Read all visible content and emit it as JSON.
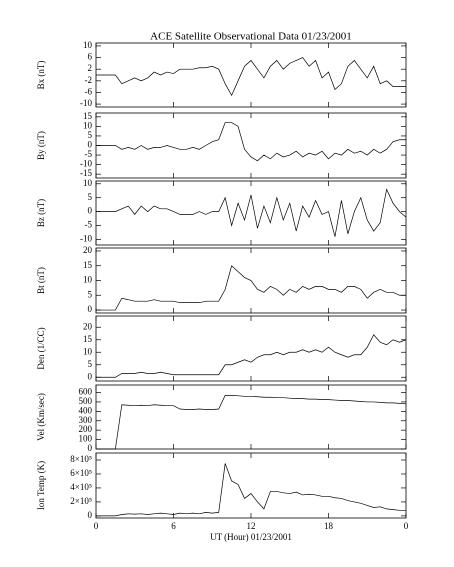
{
  "chart_data": [
    {
      "type": "line",
      "title": "ACE Satellite Observational Data   01/23/2001",
      "ylabel": "Bx (nT)",
      "x": [
        0,
        0.5,
        1,
        1.5,
        2,
        2.5,
        3,
        3.5,
        4,
        4.5,
        5,
        5.5,
        6,
        6.5,
        7,
        7.5,
        8,
        8.5,
        9,
        9.5,
        10,
        10.5,
        11,
        11.5,
        12,
        12.5,
        13,
        13.5,
        14,
        14.5,
        15,
        15.5,
        16,
        16.5,
        17,
        17.5,
        18,
        18.5,
        19,
        19.5,
        20,
        20.5,
        21,
        21.5,
        22,
        22.5,
        23,
        23.5,
        24
      ],
      "values": [
        0,
        0,
        0,
        0,
        -3,
        -2,
        -1,
        -2,
        -1,
        1,
        0,
        1,
        0.5,
        2,
        2,
        2,
        2.5,
        2.5,
        3,
        2,
        -3,
        -7,
        -2,
        3,
        5,
        2,
        -1,
        3,
        5,
        2,
        4,
        5,
        6,
        3,
        5,
        -1,
        1,
        -5,
        -3,
        3,
        5,
        2,
        -1,
        3,
        -3,
        -2,
        -4,
        -4,
        -4
      ],
      "xlim": [
        0,
        24
      ],
      "xticks": [
        0,
        6,
        12,
        18,
        {
          "value": 24,
          "label": "0"
        }
      ],
      "ylim": [
        -11,
        11
      ],
      "yticks": [
        -10,
        -6,
        -2,
        2,
        6,
        10
      ]
    },
    {
      "type": "line",
      "ylabel": "By (nT)",
      "x": [
        0,
        0.5,
        1,
        1.5,
        2,
        2.5,
        3,
        3.5,
        4,
        4.5,
        5,
        5.5,
        6,
        6.5,
        7,
        7.5,
        8,
        8.5,
        9,
        9.5,
        10,
        10.5,
        11,
        11.5,
        12,
        12.5,
        13,
        13.5,
        14,
        14.5,
        15,
        15.5,
        16,
        16.5,
        17,
        17.5,
        18,
        18.5,
        19,
        19.5,
        20,
        20.5,
        21,
        21.5,
        22,
        22.5,
        23,
        23.5,
        24
      ],
      "values": [
        0,
        0,
        0,
        0,
        -2,
        -1,
        -2,
        0,
        -2,
        -1,
        -1,
        0,
        -1,
        -2,
        -2,
        -1,
        -2,
        0,
        2,
        3,
        12,
        12,
        10,
        -2,
        -6,
        -8,
        -5,
        -7,
        -4,
        -6,
        -5,
        -3,
        -6,
        -4,
        -5,
        -3,
        -7,
        -4,
        -5,
        -2,
        -4,
        -3,
        -5,
        -2,
        -4,
        -2,
        2,
        3,
        3
      ],
      "xlim": [
        0,
        24
      ],
      "xticks": [
        0,
        6,
        12,
        18,
        {
          "value": 24,
          "label": "0"
        }
      ],
      "ylim": [
        -17,
        17
      ],
      "yticks": [
        -15,
        -10,
        -5,
        0,
        5,
        10,
        15
      ]
    },
    {
      "type": "line",
      "ylabel": "Bz (nT)",
      "x": [
        0,
        0.5,
        1,
        1.5,
        2,
        2.5,
        3,
        3.5,
        4,
        4.5,
        5,
        5.5,
        6,
        6.5,
        7,
        7.5,
        8,
        8.5,
        9,
        9.5,
        10,
        10.5,
        11,
        11.5,
        12,
        12.5,
        13,
        13.5,
        14,
        14.5,
        15,
        15.5,
        16,
        16.5,
        17,
        17.5,
        18,
        18.5,
        19,
        19.5,
        20,
        20.5,
        21,
        21.5,
        22,
        22.5,
        23,
        23.5,
        24
      ],
      "values": [
        0,
        0,
        0,
        0,
        1,
        2,
        -1,
        2,
        0,
        2,
        1,
        1,
        0,
        -1,
        -1,
        -1,
        0,
        -1,
        0,
        0,
        5,
        -5,
        3,
        -3,
        6,
        -6,
        2,
        -4,
        5,
        -3,
        3,
        -7,
        2,
        -2,
        4,
        -1,
        0,
        -9,
        4,
        -8,
        0,
        5,
        -3,
        -7,
        -4,
        8,
        3,
        0,
        -2
      ],
      "xlim": [
        0,
        24
      ],
      "xticks": [
        0,
        6,
        12,
        18,
        {
          "value": 24,
          "label": "0"
        }
      ],
      "ylim": [
        -12,
        11
      ],
      "yticks": [
        -10,
        -5,
        0,
        5,
        10
      ]
    },
    {
      "type": "line",
      "ylabel": "Bt (nT)",
      "x": [
        0,
        0.5,
        1,
        1.5,
        2,
        2.5,
        3,
        3.5,
        4,
        4.5,
        5,
        5.5,
        6,
        6.5,
        7,
        7.5,
        8,
        8.5,
        9,
        9.5,
        10,
        10.5,
        11,
        11.5,
        12,
        12.5,
        13,
        13.5,
        14,
        14.5,
        15,
        15.5,
        16,
        16.5,
        17,
        17.5,
        18,
        18.5,
        19,
        19.5,
        20,
        20.5,
        21,
        21.5,
        22,
        22.5,
        23,
        23.5,
        24
      ],
      "values": [
        0,
        0,
        0,
        0,
        4,
        3.5,
        3,
        3,
        3,
        3.5,
        3,
        3,
        3,
        2.5,
        2.5,
        2.5,
        2.5,
        3,
        3,
        3,
        7,
        15,
        13,
        11,
        10,
        7,
        6,
        8,
        7,
        5,
        7,
        6,
        8,
        7,
        8,
        8,
        7,
        7,
        6,
        8,
        8,
        7,
        4,
        6,
        7,
        6,
        6,
        5,
        5
      ],
      "xlim": [
        0,
        24
      ],
      "xticks": [
        0,
        6,
        12,
        18,
        {
          "value": 24,
          "label": "0"
        }
      ],
      "ylim": [
        -1,
        21
      ],
      "yticks": [
        0,
        5,
        10,
        15,
        20
      ]
    },
    {
      "type": "line",
      "ylabel": "Den (1/CC)",
      "x": [
        0,
        0.5,
        1,
        1.5,
        2,
        2.5,
        3,
        3.5,
        4,
        4.5,
        5,
        5.5,
        6,
        6.5,
        7,
        7.5,
        8,
        8.5,
        9,
        9.5,
        10,
        10.5,
        11,
        11.5,
        12,
        12.5,
        13,
        13.5,
        14,
        14.5,
        15,
        15.5,
        16,
        16.5,
        17,
        17.5,
        18,
        18.5,
        19,
        19.5,
        20,
        20.5,
        21,
        21.5,
        22,
        22.5,
        23,
        23.5,
        24
      ],
      "values": [
        0,
        0,
        0,
        0,
        1.5,
        1.5,
        1.5,
        2,
        1.5,
        1.5,
        2,
        1.5,
        1,
        1,
        1,
        1,
        1,
        1,
        1,
        1,
        5,
        5,
        6,
        7,
        6,
        8,
        9,
        9,
        10,
        9,
        10,
        10,
        11,
        10,
        11,
        10,
        12,
        10,
        9,
        8,
        9,
        9,
        12,
        17,
        14,
        13,
        15,
        14,
        15
      ],
      "xlim": [
        0,
        24
      ],
      "xticks": [
        0,
        6,
        12,
        18,
        {
          "value": 24,
          "label": "0"
        }
      ],
      "ylim": [
        -1.5,
        24.5
      ],
      "yticks": [
        0,
        5,
        10,
        15,
        20
      ]
    },
    {
      "type": "line",
      "ylabel": "Vel (Km/sec)",
      "x": [
        0,
        0.5,
        1,
        1.5,
        2,
        2.5,
        3,
        3.5,
        4,
        4.5,
        5,
        5.5,
        6,
        6.5,
        7,
        7.5,
        8,
        8.5,
        9,
        9.5,
        10,
        10.5,
        11,
        11.5,
        12,
        12.5,
        13,
        13.5,
        14,
        14.5,
        15,
        15.5,
        16,
        16.5,
        17,
        17.5,
        18,
        18.5,
        19,
        19.5,
        20,
        20.5,
        21,
        21.5,
        22,
        22.5,
        23,
        23.5,
        24
      ],
      "values": [
        0,
        0,
        0,
        0,
        470,
        465,
        460,
        465,
        460,
        470,
        465,
        460,
        460,
        425,
        420,
        420,
        425,
        420,
        420,
        425,
        570,
        570,
        565,
        560,
        560,
        555,
        550,
        550,
        545,
        545,
        540,
        535,
        535,
        530,
        530,
        525,
        525,
        520,
        515,
        515,
        510,
        505,
        500,
        500,
        495,
        490,
        490,
        485,
        480
      ],
      "xlim": [
        0,
        24
      ],
      "xticks": [
        0,
        6,
        12,
        18,
        {
          "value": 24,
          "label": "0"
        }
      ],
      "ylim": [
        0,
        680
      ],
      "yticks": [
        0,
        100,
        200,
        300,
        400,
        500,
        600
      ]
    },
    {
      "type": "line",
      "ylabel": "Ion Temp (K)",
      "xlabel": "UT (Hour)  01/23/2001",
      "x": [
        0,
        0.5,
        1,
        1.5,
        2,
        2.5,
        3,
        3.5,
        4,
        4.5,
        5,
        5.5,
        6,
        6.5,
        7,
        7.5,
        8,
        8.5,
        9,
        9.5,
        10,
        10.5,
        11,
        11.5,
        12,
        12.5,
        13,
        13.5,
        14,
        14.5,
        15,
        15.5,
        16,
        16.5,
        17,
        17.5,
        18,
        18.5,
        19,
        19.5,
        20,
        20.5,
        21,
        21.5,
        22,
        22.5,
        23,
        23.5,
        24
      ],
      "values": [
        0,
        0,
        0,
        0,
        20000,
        30000,
        25000,
        30000,
        20000,
        30000,
        40000,
        30000,
        20000,
        40000,
        30000,
        40000,
        30000,
        50000,
        40000,
        50000,
        750000,
        500000,
        450000,
        250000,
        320000,
        200000,
        100000,
        350000,
        350000,
        330000,
        320000,
        340000,
        300000,
        310000,
        300000,
        280000,
        280000,
        260000,
        250000,
        220000,
        200000,
        180000,
        150000,
        120000,
        130000,
        100000,
        90000,
        80000,
        80000
      ],
      "xlim": [
        0,
        24
      ],
      "xticks": [
        0,
        6,
        12,
        18,
        {
          "value": 24,
          "label": "0"
        }
      ],
      "ylim": [
        -30000,
        900000
      ],
      "yticks": [
        0,
        {
          "value": 200000,
          "label": "2×10⁵"
        },
        {
          "value": 400000,
          "label": "4×10⁵"
        },
        {
          "value": 600000,
          "label": "6×10⁵"
        },
        {
          "value": 800000,
          "label": "8×10⁵"
        }
      ]
    }
  ]
}
